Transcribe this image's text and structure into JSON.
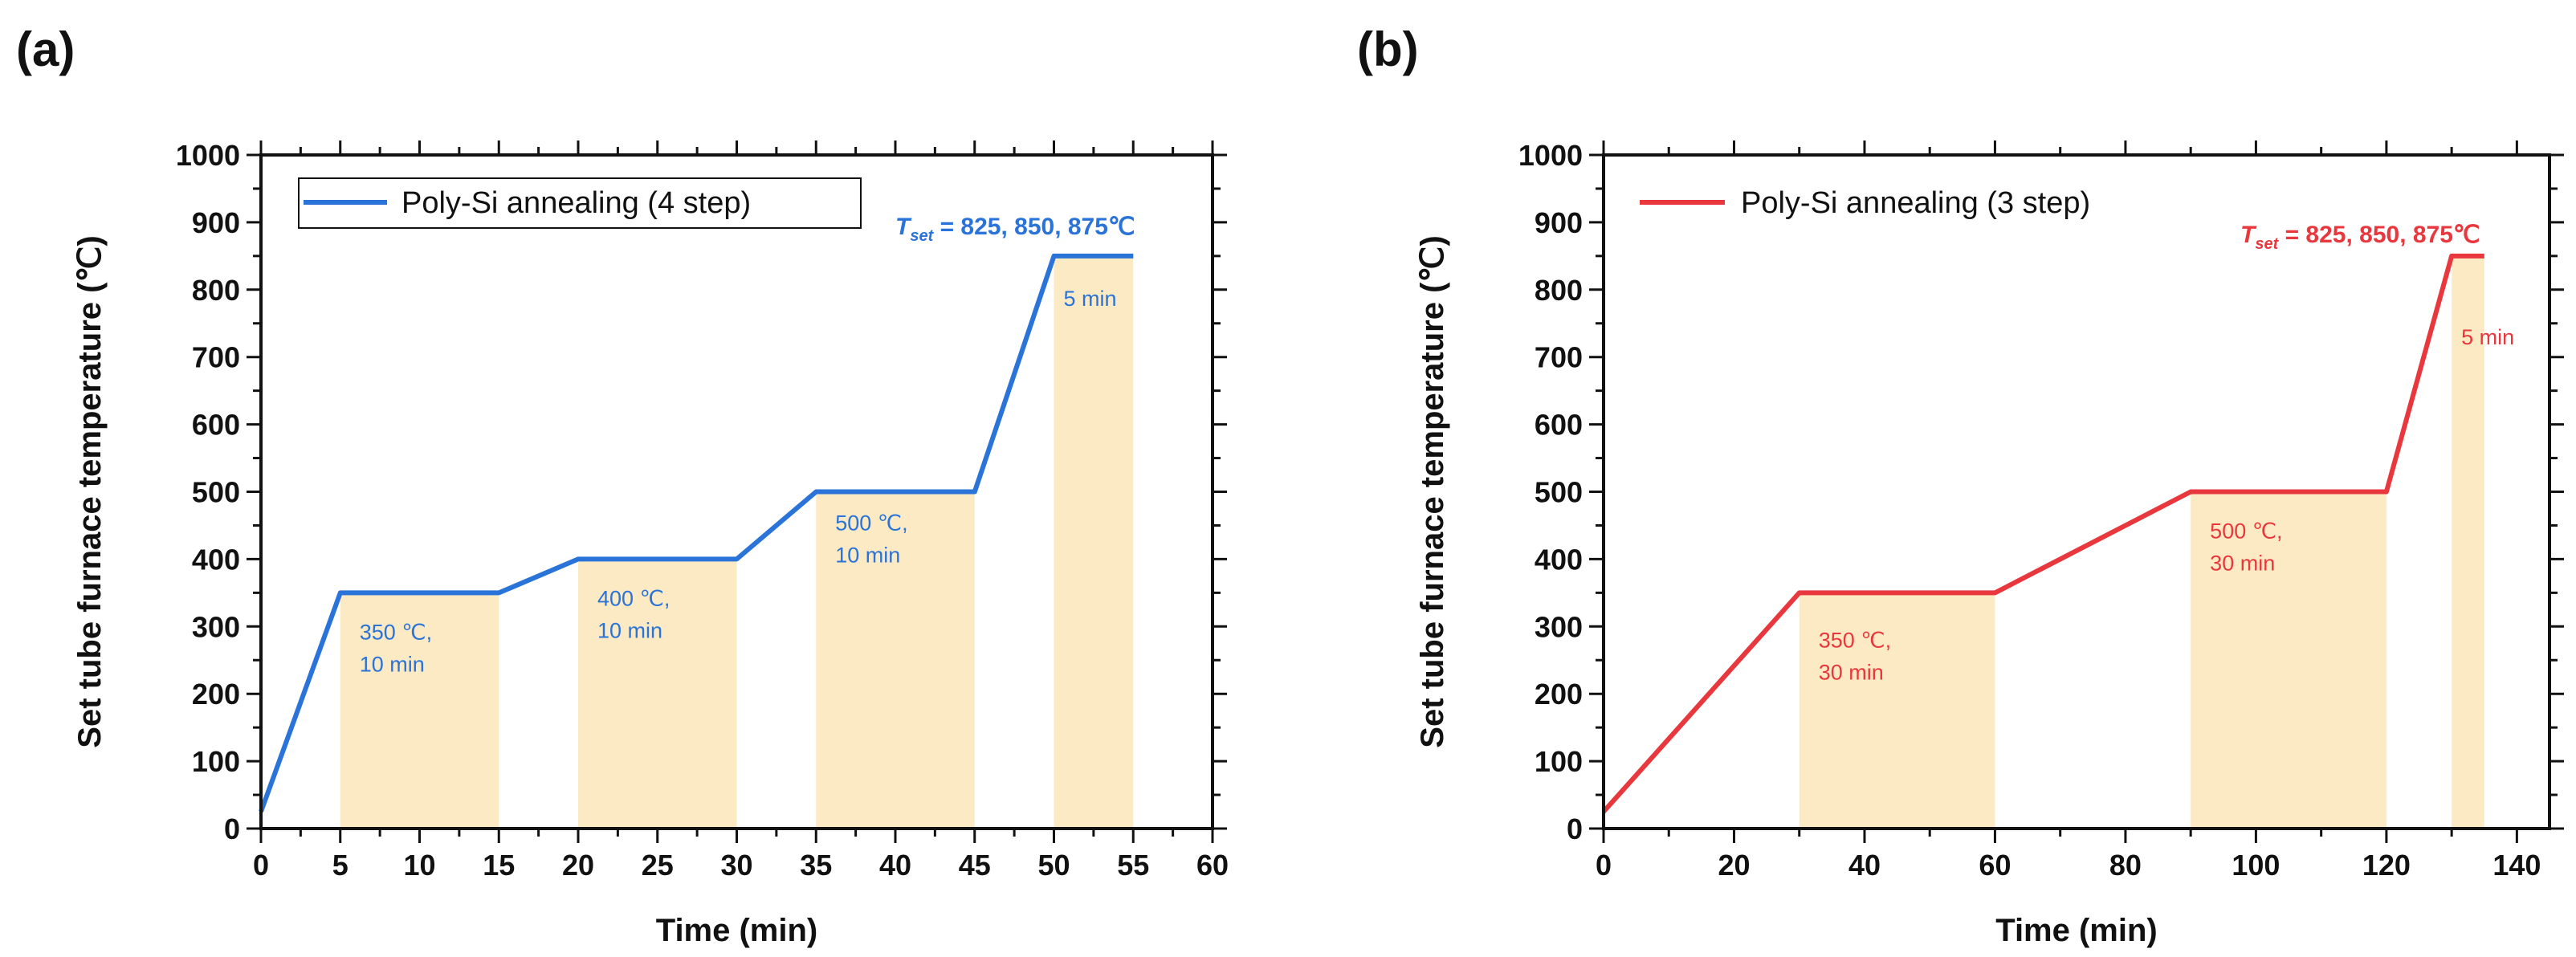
{
  "figure": {
    "panel_a": "(a)",
    "panel_b": "(b)"
  },
  "colors": {
    "series_a": "#2a73d8",
    "series_b": "#e8383d",
    "hold_fill": "#fbeac4",
    "axis": "#111111"
  },
  "chart_data": [
    {
      "type": "line",
      "panel": "(a)",
      "xlabel": "Time (min)",
      "ylabel": "Set tube furnace temperature (℃)",
      "xlim": [
        0,
        60
      ],
      "ylim": [
        0,
        1000
      ],
      "xticks": [
        0,
        5,
        10,
        15,
        20,
        25,
        30,
        35,
        40,
        45,
        50,
        55,
        60
      ],
      "yticks": [
        0,
        100,
        200,
        300,
        400,
        500,
        600,
        700,
        800,
        900,
        1000
      ],
      "legend": "Poly-Si annealing (4 step)",
      "legend_position": "top-left",
      "legend_boxed": true,
      "series": [
        {
          "name": "Poly-Si annealing (4 step)",
          "x": [
            0,
            5,
            15,
            20,
            30,
            35,
            45,
            50,
            55
          ],
          "y": [
            25,
            350,
            350,
            400,
            400,
            500,
            500,
            850,
            850
          ]
        }
      ],
      "holds": [
        {
          "x0": 5,
          "x1": 15,
          "temp": 350,
          "label_line1": "350 ℃,",
          "label_line2": "10 min"
        },
        {
          "x0": 20,
          "x1": 30,
          "temp": 400,
          "label_line1": "400 ℃,",
          "label_line2": "10 min"
        },
        {
          "x0": 35,
          "x1": 45,
          "temp": 500,
          "label_line1": "500 ℃,",
          "label_line2": "10 min"
        },
        {
          "x0": 50,
          "x1": 55,
          "temp": 850,
          "label_line1": "5 min",
          "label_line2": ""
        }
      ],
      "tset": {
        "symbol": "T",
        "subscript": "set",
        "text": " = 825, 850, 875℃"
      }
    },
    {
      "type": "line",
      "panel": "(b)",
      "xlabel": "Time (min)",
      "ylabel": "Set tube furnace temperature (℃)",
      "xlim": [
        0,
        145
      ],
      "ylim": [
        0,
        1000
      ],
      "xticks": [
        0,
        20,
        40,
        60,
        80,
        100,
        120,
        140
      ],
      "yticks": [
        0,
        100,
        200,
        300,
        400,
        500,
        600,
        700,
        800,
        900,
        1000
      ],
      "legend": "Poly-Si annealing (3 step)",
      "legend_position": "top-left",
      "legend_boxed": false,
      "series": [
        {
          "name": "Poly-Si annealing (3 step)",
          "x": [
            0,
            30,
            60,
            90,
            120,
            130,
            135
          ],
          "y": [
            25,
            350,
            350,
            500,
            500,
            850,
            850
          ]
        }
      ],
      "holds": [
        {
          "x0": 30,
          "x1": 60,
          "temp": 350,
          "label_line1": "350 ℃,",
          "label_line2": "30 min"
        },
        {
          "x0": 90,
          "x1": 120,
          "temp": 500,
          "label_line1": "500 ℃,",
          "label_line2": "30 min"
        },
        {
          "x0": 130,
          "x1": 135,
          "temp": 850,
          "label_line1": "5 min",
          "label_line2": ""
        }
      ],
      "tset": {
        "symbol": "T",
        "subscript": "set",
        "text": " = 825, 850, 875℃"
      }
    }
  ]
}
